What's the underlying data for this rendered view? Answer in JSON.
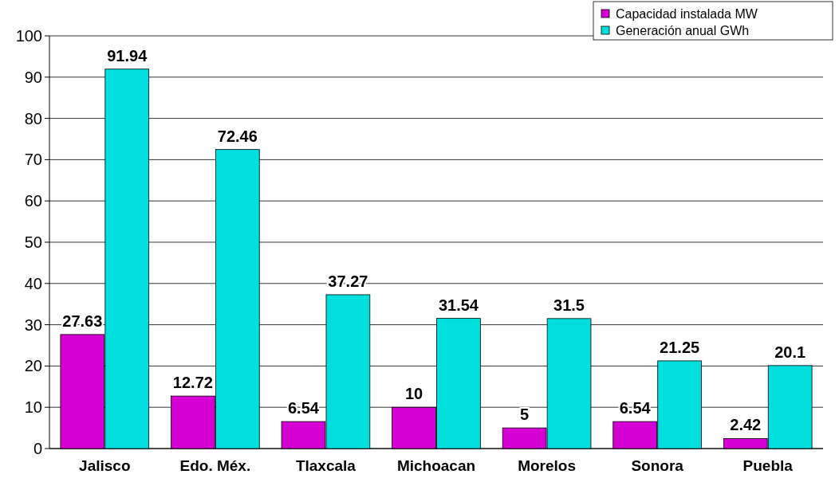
{
  "chart_data": {
    "type": "bar",
    "categories": [
      "Jalisco",
      "Edo. Méx.",
      "Tlaxcala",
      "Michoacan",
      "Morelos",
      "Sonora",
      "Puebla"
    ],
    "series": [
      {
        "name": "Capacidad instalada MW",
        "color": "#d400d4",
        "values": [
          27.63,
          12.72,
          6.54,
          10,
          5,
          6.54,
          2.42
        ]
      },
      {
        "name": "Generación anual GWh",
        "color": "#00dede",
        "values": [
          91.94,
          72.46,
          37.27,
          31.54,
          31.5,
          21.25,
          20.1
        ]
      }
    ],
    "ylim": [
      0,
      100
    ],
    "yticks": [
      0,
      10,
      20,
      30,
      40,
      50,
      60,
      70,
      80,
      90,
      100
    ],
    "grid": "y",
    "legend": "top right",
    "data_labels": true
  }
}
